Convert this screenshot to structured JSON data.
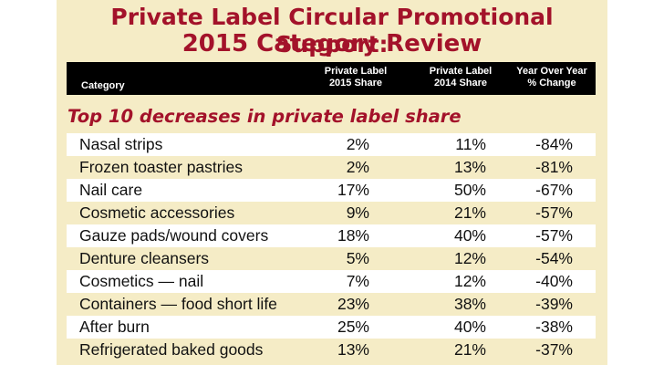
{
  "title_line1": "Private Label Circular Promotional Support:",
  "title_line2": "2015 Category Review",
  "section_heading": "Top 10 decreases in private label share",
  "colors": {
    "accent": "#a3122a",
    "background": "#f5ecc6",
    "header": "#000000"
  },
  "chart_data": {
    "type": "table",
    "columns": [
      {
        "line1": "Category",
        "line2": ""
      },
      {
        "line1": "Private Label",
        "line2": "2015 Share"
      },
      {
        "line1": "Private Label",
        "line2": "2014 Share"
      },
      {
        "line1": "Year Over Year",
        "line2": "% Change"
      }
    ],
    "rows": [
      {
        "category": "Nasal strips",
        "share_2015": "2%",
        "share_2014": "11%",
        "change": "-84%"
      },
      {
        "category": "Frozen toaster pastries",
        "share_2015": "2%",
        "share_2014": "13%",
        "change": "-81%"
      },
      {
        "category": "Nail care",
        "share_2015": "17%",
        "share_2014": "50%",
        "change": "-67%"
      },
      {
        "category": "Cosmetic accessories",
        "share_2015": "9%",
        "share_2014": "21%",
        "change": "-57%"
      },
      {
        "category": "Gauze pads/wound covers",
        "share_2015": "18%",
        "share_2014": "40%",
        "change": "-57%"
      },
      {
        "category": "Denture cleansers",
        "share_2015": "5%",
        "share_2014": "12%",
        "change": "-54%"
      },
      {
        "category": "Cosmetics — nail",
        "share_2015": "7%",
        "share_2014": "12%",
        "change": "-40%"
      },
      {
        "category": "Containers — food short life",
        "share_2015": "23%",
        "share_2014": "38%",
        "change": "-39%"
      },
      {
        "category": "After burn",
        "share_2015": "25%",
        "share_2014": "40%",
        "change": "-38%"
      },
      {
        "category": "Refrigerated baked goods",
        "share_2015": "13%",
        "share_2014": "21%",
        "change": "-37%"
      }
    ]
  }
}
